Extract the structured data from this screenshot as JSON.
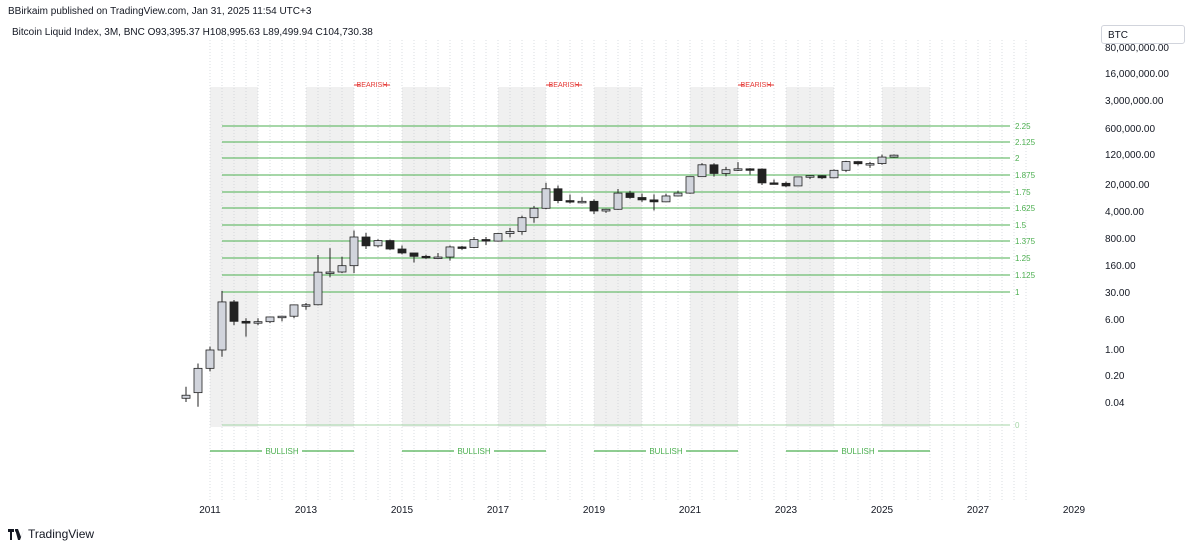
{
  "header": {
    "publisher": "BBirkaim published on TradingView.com, Jan 31, 2025 11:54 UTC+3",
    "ohlc": "Bitcoin Liquid Index, 3M, BNC  O93,395.37  H108,995.63  L89,499.94  C104,730.38",
    "ticker": "BTC"
  },
  "footer": {
    "logo_text": "TradingView"
  },
  "colors": {
    "fib_line": "#4caf50",
    "fib_zero": "#a5d6a7",
    "bullish": "#4caf50",
    "bearish": "#e53935",
    "shade": "#f0f0f0",
    "candle_up": "#d1d4dc",
    "candle_down": "#222222"
  },
  "chart_data": {
    "type": "candlestick",
    "title": "Bitcoin Liquid Index, 3M, BNC",
    "y_scale": "log",
    "x_ticks": [
      "2011",
      "2013",
      "2015",
      "2017",
      "2019",
      "2021",
      "2023",
      "2025",
      "2027",
      "2029"
    ],
    "y_ticks": [
      "80,000,000.00",
      "16,000,000.00",
      "3,000,000.00",
      "600,000.00",
      "120,000.00",
      "20,000.00",
      "4,000.00",
      "800.00",
      "160.00",
      "30.00",
      "6.00",
      "1.00",
      "0.20",
      "0.04"
    ],
    "fib_levels": [
      "2.25",
      "2.125",
      "2",
      "1.875",
      "1.75",
      "1.625",
      "1.5",
      "1.375",
      "1.25",
      "1.125",
      "1",
      "0"
    ],
    "cycle_labels": {
      "bearish": [
        "BEARISH",
        "BEARISH",
        "BEARISH"
      ],
      "bullish": [
        "BULLISH",
        "BULLISH",
        "BULLISH",
        "BULLISH"
      ]
    },
    "bearish_years": [
      2014,
      2018,
      2022
    ],
    "bullish_ranges": [
      [
        2011.0,
        2014.0
      ],
      [
        2015.0,
        2018.0
      ],
      [
        2019.0,
        2022.0
      ],
      [
        2023.0,
        2026.0
      ]
    ],
    "shaded_ranges": [
      [
        2011.0,
        2012.0
      ],
      [
        2013.0,
        2014.0
      ],
      [
        2015.0,
        2016.0
      ],
      [
        2017.0,
        2018.0
      ],
      [
        2019.0,
        2020.0
      ],
      [
        2021.0,
        2022.0
      ],
      [
        2023.0,
        2024.0
      ],
      [
        2025.0,
        2026.0
      ]
    ],
    "candles": [
      {
        "t": 2010.5,
        "o": 0.05,
        "h": 0.1,
        "l": 0.04,
        "c": 0.06
      },
      {
        "t": 2010.75,
        "o": 0.07,
        "h": 0.4,
        "l": 0.03,
        "c": 0.3
      },
      {
        "t": 2011.0,
        "o": 0.3,
        "h": 1.1,
        "l": 0.25,
        "c": 0.9
      },
      {
        "t": 2011.25,
        "o": 0.9,
        "h": 31,
        "l": 0.6,
        "c": 16
      },
      {
        "t": 2011.5,
        "o": 16,
        "h": 18,
        "l": 4,
        "c": 5
      },
      {
        "t": 2011.75,
        "o": 5,
        "h": 6,
        "l": 2,
        "c": 4.5
      },
      {
        "t": 2012.0,
        "o": 4.8,
        "h": 6,
        "l": 4,
        "c": 4.9
      },
      {
        "t": 2012.25,
        "o": 4.9,
        "h": 6,
        "l": 4.5,
        "c": 6.5
      },
      {
        "t": 2012.5,
        "o": 6.6,
        "h": 7,
        "l": 5,
        "c": 6.8
      },
      {
        "t": 2012.75,
        "o": 6.8,
        "h": 13.5,
        "l": 6,
        "c": 13.4
      },
      {
        "t": 2013.0,
        "o": 13,
        "h": 15,
        "l": 10,
        "c": 13.5
      },
      {
        "t": 2013.25,
        "o": 13.5,
        "h": 266,
        "l": 13,
        "c": 95
      },
      {
        "t": 2013.5,
        "o": 95,
        "h": 400,
        "l": 70,
        "c": 96
      },
      {
        "t": 2013.75,
        "o": 96,
        "h": 240,
        "l": 90,
        "c": 140
      },
      {
        "t": 2014.0,
        "o": 140,
        "h": 1150,
        "l": 90,
        "c": 780
      },
      {
        "t": 2014.25,
        "o": 780,
        "h": 1000,
        "l": 380,
        "c": 460
      },
      {
        "t": 2014.5,
        "o": 460,
        "h": 680,
        "l": 420,
        "c": 630
      },
      {
        "t": 2014.75,
        "o": 630,
        "h": 670,
        "l": 360,
        "c": 380
      },
      {
        "t": 2015.0,
        "o": 380,
        "h": 470,
        "l": 275,
        "c": 300
      },
      {
        "t": 2015.25,
        "o": 300,
        "h": 300,
        "l": 170,
        "c": 245
      },
      {
        "t": 2015.5,
        "o": 245,
        "h": 270,
        "l": 210,
        "c": 225
      },
      {
        "t": 2015.75,
        "o": 225,
        "h": 300,
        "l": 210,
        "c": 235
      },
      {
        "t": 2016.0,
        "o": 235,
        "h": 470,
        "l": 190,
        "c": 430
      },
      {
        "t": 2016.25,
        "o": 430,
        "h": 460,
        "l": 360,
        "c": 415
      },
      {
        "t": 2016.5,
        "o": 415,
        "h": 780,
        "l": 400,
        "c": 670
      },
      {
        "t": 2016.75,
        "o": 670,
        "h": 780,
        "l": 480,
        "c": 610
      },
      {
        "t": 2017.0,
        "o": 610,
        "h": 980,
        "l": 590,
        "c": 960
      },
      {
        "t": 2017.25,
        "o": 960,
        "h": 1350,
        "l": 760,
        "c": 1080
      },
      {
        "t": 2017.5,
        "o": 1080,
        "h": 2800,
        "l": 890,
        "c": 2480
      },
      {
        "t": 2017.75,
        "o": 2480,
        "h": 5000,
        "l": 1830,
        "c": 4350
      },
      {
        "t": 2018.0,
        "o": 4350,
        "h": 20000,
        "l": 4100,
        "c": 14000
      },
      {
        "t": 2018.25,
        "o": 14000,
        "h": 17000,
        "l": 5900,
        "c": 6900
      },
      {
        "t": 2018.5,
        "o": 6900,
        "h": 9900,
        "l": 5800,
        "c": 6400
      },
      {
        "t": 2018.75,
        "o": 6400,
        "h": 8500,
        "l": 5800,
        "c": 6600
      },
      {
        "t": 2019.0,
        "o": 6600,
        "h": 7400,
        "l": 3100,
        "c": 3700
      },
      {
        "t": 2019.25,
        "o": 3700,
        "h": 4200,
        "l": 3300,
        "c": 4100
      },
      {
        "t": 2019.5,
        "o": 4100,
        "h": 13800,
        "l": 4000,
        "c": 10800
      },
      {
        "t": 2019.75,
        "o": 10800,
        "h": 12300,
        "l": 7700,
        "c": 8300
      },
      {
        "t": 2020.0,
        "o": 8300,
        "h": 10500,
        "l": 6400,
        "c": 7200
      },
      {
        "t": 2020.25,
        "o": 7200,
        "h": 10000,
        "l": 3800,
        "c": 6400
      },
      {
        "t": 2020.5,
        "o": 6400,
        "h": 10400,
        "l": 6400,
        "c": 9100
      },
      {
        "t": 2020.75,
        "o": 9100,
        "h": 12400,
        "l": 9000,
        "c": 10800
      },
      {
        "t": 2021.0,
        "o": 10800,
        "h": 29000,
        "l": 10400,
        "c": 28900
      },
      {
        "t": 2021.25,
        "o": 28900,
        "h": 64800,
        "l": 28300,
        "c": 58800
      },
      {
        "t": 2021.5,
        "o": 58800,
        "h": 64500,
        "l": 29000,
        "c": 35000
      },
      {
        "t": 2021.75,
        "o": 35000,
        "h": 52000,
        "l": 29300,
        "c": 43800
      },
      {
        "t": 2022.0,
        "o": 43800,
        "h": 69000,
        "l": 40500,
        "c": 46200
      },
      {
        "t": 2022.25,
        "o": 46200,
        "h": 48200,
        "l": 33000,
        "c": 45500
      },
      {
        "t": 2022.5,
        "o": 45500,
        "h": 47500,
        "l": 17600,
        "c": 19900
      },
      {
        "t": 2022.75,
        "o": 19900,
        "h": 24300,
        "l": 18200,
        "c": 19400
      },
      {
        "t": 2023.0,
        "o": 19400,
        "h": 21500,
        "l": 15500,
        "c": 16600
      },
      {
        "t": 2023.25,
        "o": 16600,
        "h": 29200,
        "l": 16500,
        "c": 28500
      },
      {
        "t": 2023.5,
        "o": 28500,
        "h": 31400,
        "l": 25000,
        "c": 30500
      },
      {
        "t": 2023.75,
        "o": 30500,
        "h": 31800,
        "l": 24900,
        "c": 27000
      },
      {
        "t": 2024.0,
        "o": 27000,
        "h": 44700,
        "l": 26500,
        "c": 42300
      },
      {
        "t": 2024.25,
        "o": 42300,
        "h": 73800,
        "l": 38500,
        "c": 71300
      },
      {
        "t": 2024.5,
        "o": 71300,
        "h": 72700,
        "l": 56500,
        "c": 62700
      },
      {
        "t": 2024.75,
        "o": 62700,
        "h": 70000,
        "l": 49000,
        "c": 63300
      },
      {
        "t": 2025.0,
        "o": 63300,
        "h": 108300,
        "l": 58900,
        "c": 93400
      },
      {
        "t": 2025.25,
        "o": 93395,
        "h": 108996,
        "l": 89500,
        "c": 104730
      }
    ]
  }
}
